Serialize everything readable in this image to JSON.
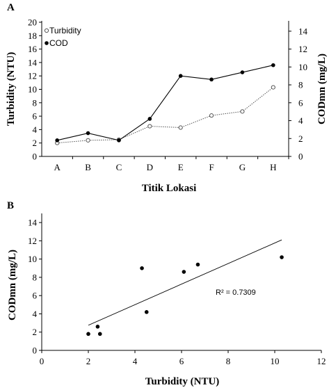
{
  "chart_data": [
    {
      "panel": "A",
      "type": "line",
      "categories": [
        "A",
        "B",
        "C",
        "D",
        "E",
        "F",
        "G",
        "H"
      ],
      "xlabel": "Titik Lokasi",
      "ylabel_left": "Turbidity (NTU)",
      "ylabel_right": "CODmn (mg/L)",
      "ylim_left": [
        0,
        20
      ],
      "yticks_left": [
        "0",
        "2",
        "4",
        "6",
        "8",
        "10",
        "12",
        "14",
        "16",
        "18",
        "20"
      ],
      "ylim_right": [
        0,
        15
      ],
      "yticks_right": [
        "0",
        "2",
        "4",
        "6",
        "8",
        "10",
        "12",
        "14"
      ],
      "legend_position": "top-left",
      "series": [
        {
          "name": "Turbidity",
          "axis": "left",
          "marker": "open-circle",
          "line": "dotted",
          "color": "#555555",
          "values": [
            2.0,
            2.4,
            2.5,
            4.5,
            4.3,
            6.1,
            6.7,
            10.3
          ]
        },
        {
          "name": "COD",
          "axis": "right",
          "marker": "filled-circle",
          "line": "solid",
          "color": "#000000",
          "values": [
            1.8,
            2.6,
            1.8,
            4.2,
            9.0,
            8.6,
            9.4,
            10.2
          ]
        }
      ]
    },
    {
      "panel": "B",
      "type": "scatter",
      "xlabel": "Turbidity (NTU)",
      "ylabel": "CODmn (mg/L)",
      "xlim": [
        0,
        12
      ],
      "xticks": [
        "0",
        "2",
        "4",
        "6",
        "8",
        "10",
        "12"
      ],
      "ylim": [
        0,
        15
      ],
      "yticks": [
        "0",
        "2",
        "4",
        "6",
        "8",
        "10",
        "12",
        "14"
      ],
      "points": [
        {
          "x": 2.0,
          "y": 1.8
        },
        {
          "x": 2.4,
          "y": 2.6
        },
        {
          "x": 2.5,
          "y": 1.8
        },
        {
          "x": 4.5,
          "y": 4.2
        },
        {
          "x": 4.3,
          "y": 9.0
        },
        {
          "x": 6.1,
          "y": 8.6
        },
        {
          "x": 6.7,
          "y": 9.4
        },
        {
          "x": 10.3,
          "y": 10.2
        }
      ],
      "trendline": {
        "x": [
          2.0,
          10.3
        ],
        "y": [
          2.75,
          12.1
        ]
      },
      "annotation": "R² = 0.7309"
    }
  ]
}
